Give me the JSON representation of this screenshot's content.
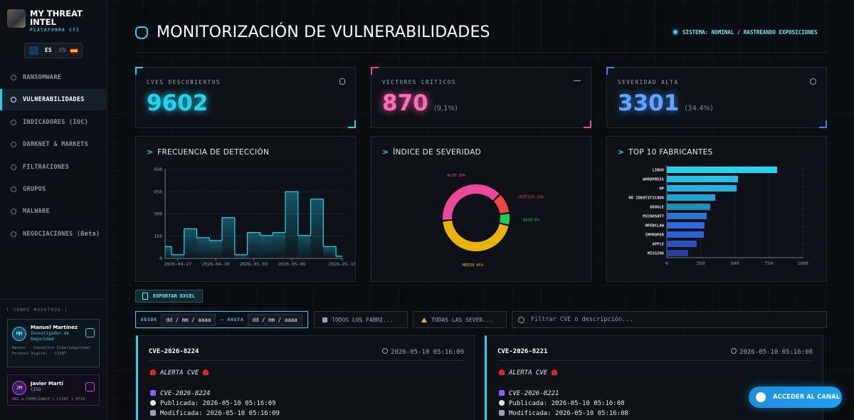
{
  "sidebar": {
    "brand": "MY THREAT INTEL",
    "tagline": "PLATAFORMA CTI",
    "languages": [
      "ES",
      "EN"
    ],
    "nav": [
      "RANSOMWARE",
      "VULNERABILIDADES",
      "INDICADORES (IOC)",
      "DARKNET & MARKETS",
      "FILTRACIONES",
      "GRUPOS",
      "MALWARE",
      "NEGOCIACIONES (Beta)"
    ],
    "about_label": "[ SOBRE NOSOTROS ]",
    "team": [
      {
        "initials": "MM",
        "name": "Manuel Martínez",
        "role": "Investigador de Seguridad",
        "bio": "Hacker - Consultor Ciberseguridad Forense Digital - CSIRT"
      },
      {
        "initials": "JM",
        "name": "Javier Martí",
        "role": "CISO",
        "bio": "GRC & COMPLIANCE | CSIRT | DFIR"
      }
    ]
  },
  "header": {
    "title": "MONITORIZACIÓN DE VULNERABILIDADES",
    "status": "SISTEMA: NOMINAL / RASTREANDO EXPOSICIONES"
  },
  "stats": [
    {
      "label": "CVES DESCUBIERTOS",
      "value": 9602
    },
    {
      "label": "VECTORES CRÍTICOS",
      "value": 870,
      "percent": "(9.1%)"
    },
    {
      "label": "SEVERIDAD ALTA",
      "value": 3301,
      "percent": "(34.4%)"
    }
  ],
  "chart_data": [
    {
      "type": "step",
      "title": "FRECUENCIA DE DETECCIÓN",
      "color": "#22d3ee",
      "x": [
        "2026-04-26",
        "2026-04-27",
        "2026-04-28",
        "2026-04-29",
        "2026-04-30",
        "2026-05-01",
        "2026-05-02",
        "2026-05-03",
        "2026-05-04",
        "2026-05-05",
        "2026-05-06",
        "2026-05-07",
        "2026-05-08",
        "2026-05-09",
        "2026-05-10"
      ],
      "values": [
        80,
        25,
        200,
        140,
        120,
        275,
        25,
        175,
        155,
        175,
        450,
        155,
        400,
        80,
        15
      ],
      "xticks": [
        "2026-04-27",
        "2026-04-30",
        "2026-05-03",
        "2026-05-06",
        "2026-05-10"
      ],
      "ylim": [
        0,
        600
      ],
      "yticks": [
        0,
        150,
        300,
        450,
        600
      ],
      "grid": true
    },
    {
      "type": "pie",
      "title": "ÍNDICE DE SEVERIDAD",
      "labels": [
        "ALTO",
        "CRÍTICO",
        "BAJO",
        "MEDIO"
      ],
      "values": [
        39,
        10,
        6,
        45
      ],
      "value_labels": [
        "39%",
        "10%",
        "6%",
        "45%"
      ],
      "colors": [
        "#ec4899",
        "#ef4444",
        "#22c55e",
        "#eab308"
      ]
    },
    {
      "type": "barh",
      "title": "TOP 10 FABRICANTES",
      "categories": [
        "LINUX",
        "WORDPRESS",
        "HP",
        "NO IDENTIFICADO",
        "GOOGLE",
        "MICROSOFT",
        "OPENCLAW",
        "IMPROPER",
        "APPLE",
        "MISSING"
      ],
      "values": [
        811,
        524,
        513,
        356,
        319,
        293,
        277,
        272,
        220,
        157
      ],
      "colors": [
        "#22d3ee",
        "#22c3e6",
        "#20b4dc",
        "#1ea5d2",
        "#1c8fb8",
        "#2a74d8",
        "#2f68e0",
        "#2d5fd6",
        "#2a4fb8",
        "#2a3f9a"
      ],
      "xlim": [
        0,
        1000
      ],
      "xticks": [
        0,
        250,
        500,
        750,
        1000
      ],
      "grid": true
    }
  ],
  "toolbar": {
    "export": "EXPORTAR EXCEL",
    "from_label": "DESDE",
    "to_label": "HASTA",
    "date_placeholders": [
      "dd / mm / aaaa",
      "dd / mm / aaaa"
    ],
    "vendor_filter": "TODOS LOS FABRI...",
    "severity_filter": "TODAS LAS SEVER...",
    "search_placeholder": "Filtrar CVE o descripción..."
  },
  "cves": [
    {
      "id": "CVE-2026-8224",
      "timestamp": "2026-05-10 05:16:09",
      "alert": "ALERTA CVE",
      "cve": "CVE-2026-8224",
      "published": "Publicada: 2026-05-10 05:16:09",
      "modified": "Modificada: 2026-05-10 05:16:09"
    },
    {
      "id": "CVE-2026-8221",
      "timestamp": "2026-05-10 05:16:08",
      "alert": "ALERTA CVE",
      "cve": "CVE-2026-8221",
      "published": "Publicada: 2026-05-10 05:16:08",
      "modified": "Modificada: 2026-05-10 05:16:08"
    }
  ],
  "cta": "ACCEDER AL CANAL"
}
